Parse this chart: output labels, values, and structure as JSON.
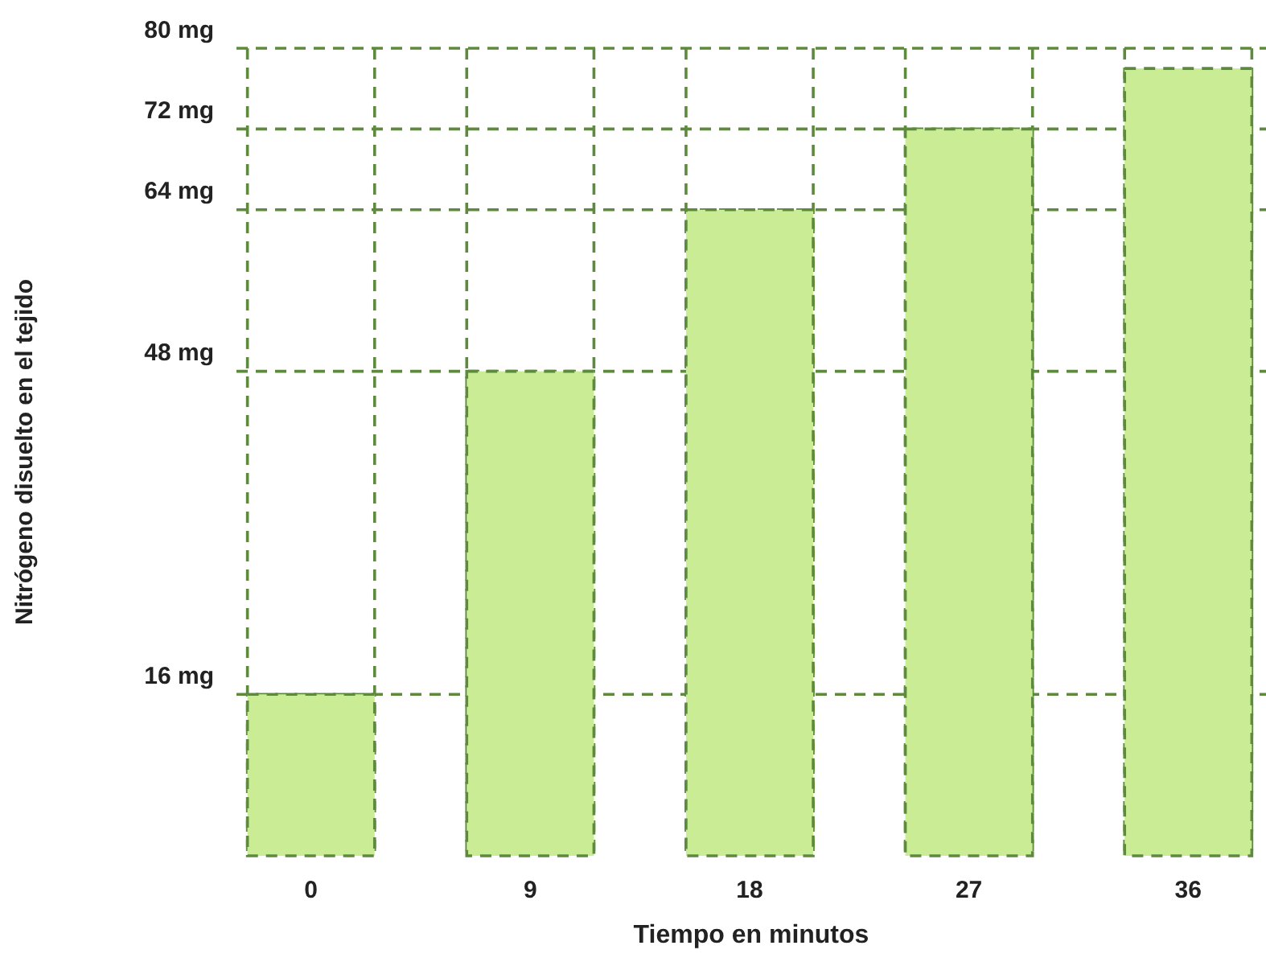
{
  "chart_data": {
    "type": "bar",
    "xlabel": "Tiempo en minutos",
    "ylabel": "Nitrógeno disuelto en el tejido",
    "categories": [
      "0",
      "9",
      "18",
      "27",
      "36"
    ],
    "values": [
      16,
      48,
      64,
      72,
      78
    ],
    "color": "#c9ec94",
    "ylim": [
      0,
      80
    ],
    "yticks": [
      {
        "value": 16,
        "label": "16 mg"
      },
      {
        "value": 48,
        "label": "48 mg"
      },
      {
        "value": 64,
        "label": "64 mg"
      },
      {
        "value": 72,
        "label": "72 mg"
      },
      {
        "value": 80,
        "label": "80 mg"
      }
    ],
    "grid": true
  }
}
